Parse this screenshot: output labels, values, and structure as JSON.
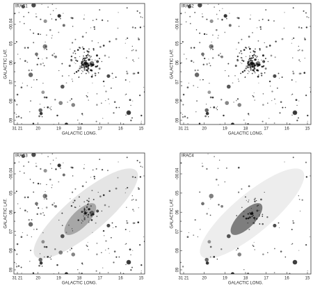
{
  "panels": [
    {
      "title": "IRAC1",
      "xlabel": "GALACTIC LONG.",
      "ylabel": "GALACTIC LAT.",
      "xticks": [
        "31 21",
        "20",
        "19",
        "18",
        "17",
        "16",
        "15"
      ],
      "yticks": [
        "-00.04",
        "05",
        "06",
        "07",
        "08",
        "09"
      ]
    },
    {
      "title": "IRAC2",
      "xlabel": "GALACTIC LONG.",
      "ylabel": "GALACTIC LAT.",
      "xticks": [
        "31 21",
        "20",
        "19",
        "18",
        "17",
        "16",
        "15"
      ],
      "yticks": [
        "-00.04",
        "05",
        "06",
        "07",
        "08",
        "09"
      ]
    },
    {
      "title": "IRAC3",
      "xlabel": "GALACTIC LONG.",
      "ylabel": "GALACTIC LAT.",
      "xticks": [
        "31 21",
        "20",
        "19",
        "18",
        "17",
        "16",
        "15"
      ],
      "yticks": [
        "-00.04",
        "05",
        "06",
        "07",
        "08",
        "09"
      ]
    },
    {
      "title": "IRAC4",
      "xlabel": "GALACTIC LONG.",
      "ylabel": "GALACTIC LAT.",
      "xticks": [
        "31 21",
        "20",
        "19",
        "18",
        "17",
        "16",
        "15"
      ],
      "yticks": [
        "-00.04",
        "05",
        "06",
        "07",
        "08",
        "09"
      ]
    }
  ]
}
